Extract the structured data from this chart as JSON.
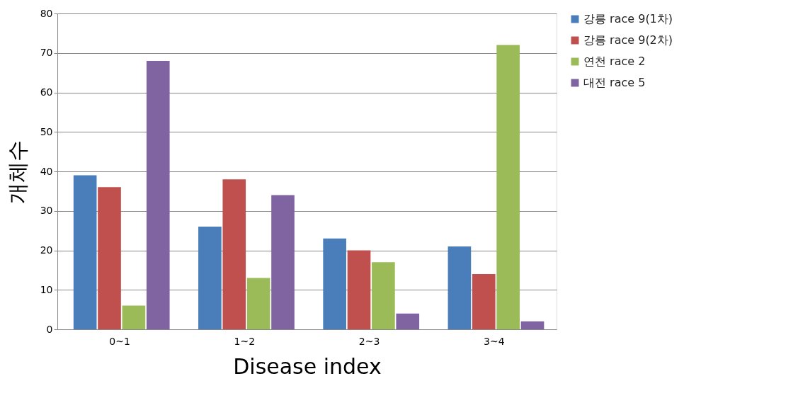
{
  "chart_data": {
    "type": "bar",
    "xlabel": "Disease index",
    "ylabel": "개체수",
    "categories": [
      "0~1",
      "1~2",
      "2~3",
      "3~4"
    ],
    "series": [
      {
        "name": "강릉 race 9(1차)",
        "color": "#4a7ebb",
        "values": [
          39,
          26,
          23,
          21
        ]
      },
      {
        "name": "강릉 race 9(2차)",
        "color": "#c0504d",
        "values": [
          36,
          38,
          20,
          14
        ]
      },
      {
        "name": "연천 race 2",
        "color": "#9bbb59",
        "values": [
          6,
          13,
          17,
          72
        ]
      },
      {
        "name": "대전 race 5",
        "color": "#8064a2",
        "values": [
          68,
          34,
          4,
          2
        ]
      }
    ],
    "ylim": [
      0,
      80
    ],
    "yticks": [
      0,
      10,
      20,
      30,
      40,
      50,
      60,
      70,
      80
    ],
    "grid": "y",
    "legend": "right"
  }
}
